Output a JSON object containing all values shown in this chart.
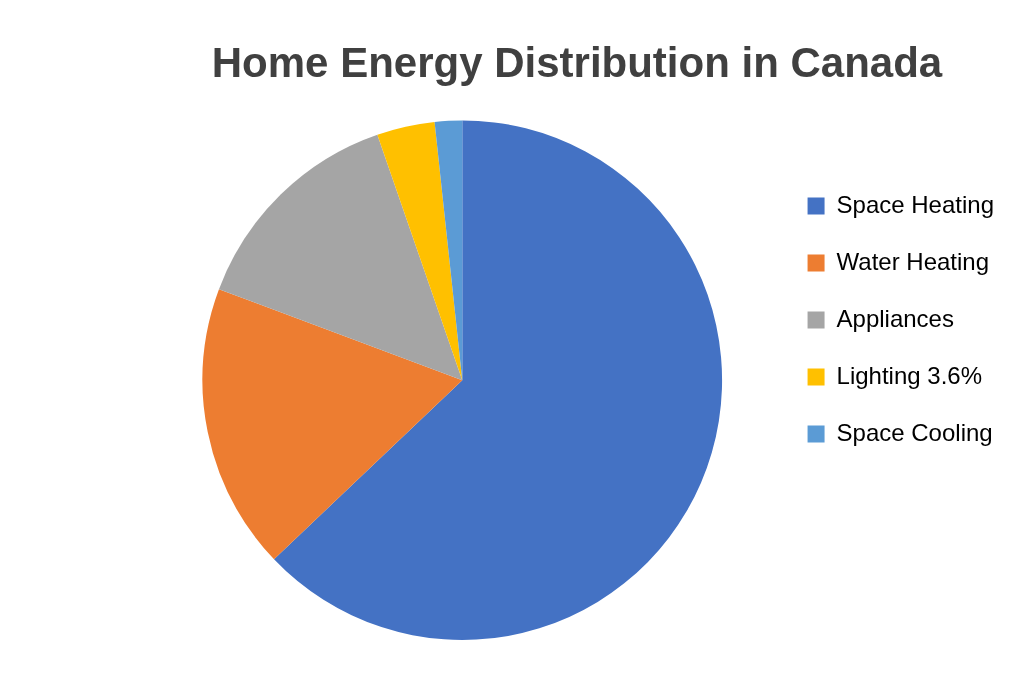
{
  "chart_data": {
    "type": "pie",
    "title": "Home Energy Distribution in Canada",
    "categories": [
      "Space Heating",
      "Water Heating",
      "Appliances",
      "Lighting",
      "Space Cooling"
    ],
    "values": [
      62.9,
      17.8,
      14.0,
      3.6,
      1.7
    ],
    "colors": [
      "#4472c4",
      "#ed7d31",
      "#a5a5a5",
      "#ffc000",
      "#5b9bd5"
    ],
    "value_labels": [
      null,
      null,
      null,
      "3.6%",
      null
    ],
    "legend": "right"
  }
}
